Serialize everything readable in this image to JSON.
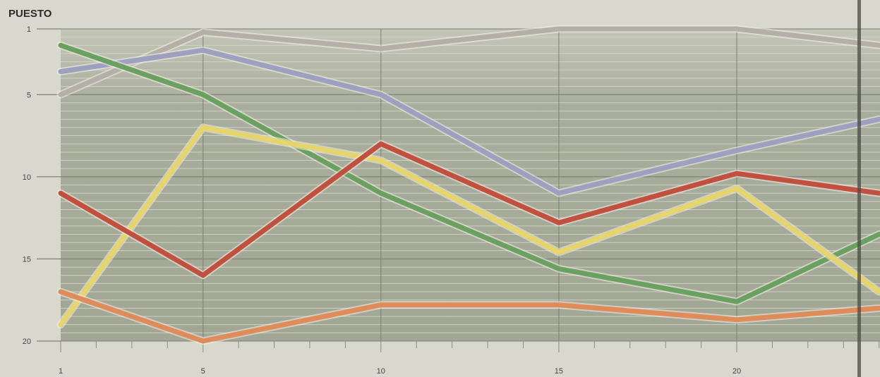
{
  "chart_data": {
    "type": "line",
    "ylabel": "PUESTO",
    "xlabel": "",
    "y_inverted": true,
    "ylim": [
      1,
      20
    ],
    "xlim": [
      1,
      24
    ],
    "x_ticks": [
      1,
      5,
      10,
      15,
      20
    ],
    "y_ticks": [
      1,
      5,
      10,
      15,
      20
    ],
    "grid": true,
    "x": [
      1,
      5,
      10,
      15,
      20,
      24
    ],
    "series": [
      {
        "color": "#b4b0a8",
        "values": [
          5,
          1.2,
          2.2,
          1,
          1,
          2
        ]
      },
      {
        "color": "#9f9fbf",
        "values": [
          3.6,
          2.3,
          5,
          11,
          8.4,
          6.5
        ]
      },
      {
        "color": "#6aa060",
        "values": [
          2,
          5,
          11,
          15.6,
          17.6,
          13.5
        ]
      },
      {
        "color": "#e6d56b",
        "values": [
          19,
          7,
          9,
          14.6,
          10.7,
          17
        ]
      },
      {
        "color": "#c2503f",
        "values": [
          11,
          16,
          8,
          12.8,
          9.8,
          11
        ]
      },
      {
        "color": "#e08c5a",
        "values": [
          17,
          20,
          17.8,
          17.8,
          18.7,
          18
        ]
      }
    ],
    "legend": "none"
  }
}
